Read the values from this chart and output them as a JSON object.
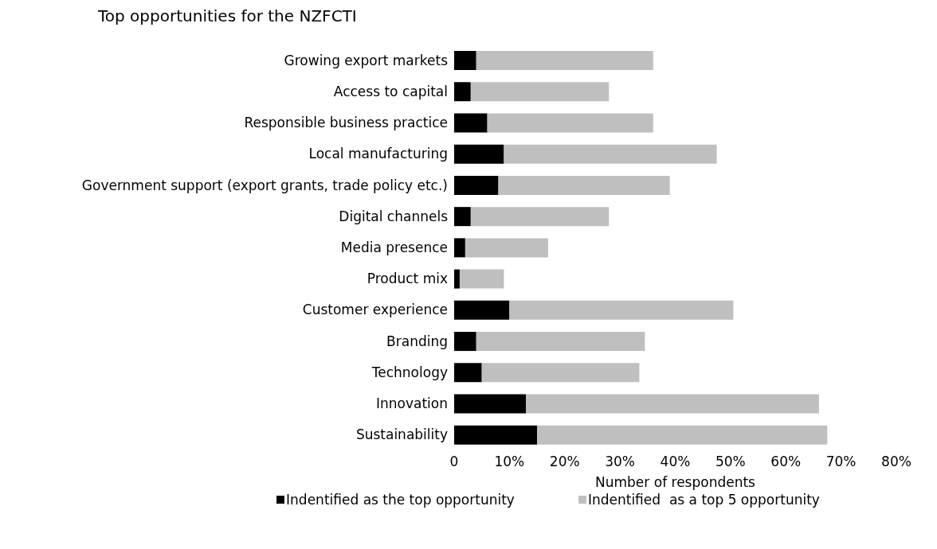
{
  "chart_data": {
    "type": "bar",
    "orientation": "horizontal",
    "stacked": true,
    "title": "Top opportunities for the NZFCTI",
    "xlabel": "Number of respondents",
    "categories": [
      "Growing export markets",
      "Access to capital",
      "Responsible business practice",
      "Local manufacturing",
      "Government support (export grants, trade policy etc.)",
      "Digital channels",
      "Media presence",
      "Product mix",
      "Customer experience",
      "Branding",
      "Technology",
      "Innovation",
      "Sustainability"
    ],
    "series": [
      {
        "name": "Indentified as the top opportunity",
        "color": "#000000",
        "values": [
          4,
          3,
          6,
          9,
          8,
          3,
          2,
          1,
          10,
          4,
          5,
          13,
          15
        ]
      },
      {
        "name": "Indentified  as a top 5 opportunity",
        "color": "#bfbfbf",
        "values": [
          32,
          25,
          30,
          38.5,
          31,
          25,
          15,
          8,
          40.5,
          30.5,
          28.5,
          53,
          52.5
        ]
      }
    ],
    "xlim": [
      0,
      80
    ],
    "xticks": [
      0,
      {
        "value": 10,
        "label": "10%"
      },
      {
        "value": 20,
        "label": "20%"
      },
      {
        "value": 30,
        "label": "30%"
      },
      {
        "value": 40,
        "label": "40%"
      },
      {
        "value": 50,
        "label": "50%"
      },
      {
        "value": 60,
        "label": "60%"
      },
      {
        "value": 70,
        "label": "70%"
      },
      {
        "value": 80,
        "label": "80%"
      }
    ],
    "legend": "bottom"
  }
}
